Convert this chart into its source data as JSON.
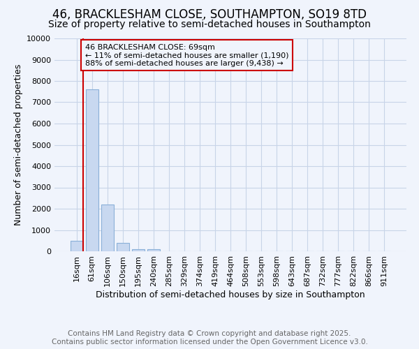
{
  "title": "46, BRACKLESHAM CLOSE, SOUTHAMPTON, SO19 8TD",
  "subtitle": "Size of property relative to semi-detached houses in Southampton",
  "xlabel": "Distribution of semi-detached houses by size in Southampton",
  "ylabel": "Number of semi-detached properties",
  "categories": [
    "16sqm",
    "61sqm",
    "106sqm",
    "150sqm",
    "195sqm",
    "240sqm",
    "285sqm",
    "329sqm",
    "374sqm",
    "419sqm",
    "464sqm",
    "508sqm",
    "553sqm",
    "598sqm",
    "643sqm",
    "687sqm",
    "732sqm",
    "777sqm",
    "822sqm",
    "866sqm",
    "911sqm"
  ],
  "values": [
    500,
    7600,
    2200,
    380,
    100,
    100,
    0,
    0,
    0,
    0,
    0,
    0,
    0,
    0,
    0,
    0,
    0,
    0,
    0,
    0,
    0
  ],
  "bar_color": "#c8d8f0",
  "bar_edge_color": "#8ab0d8",
  "grid_color": "#c8d4e8",
  "background_color": "#f0f4fc",
  "vline_color": "#cc0000",
  "property_label": "46 BRACKLESHAM CLOSE: 69sqm",
  "pct_smaller": "11% of semi-detached houses are smaller (1,190)",
  "pct_larger": "88% of semi-detached houses are larger (9,438)",
  "annotation_box_color": "#cc0000",
  "ylim": [
    0,
    10000
  ],
  "yticks": [
    0,
    1000,
    2000,
    3000,
    4000,
    5000,
    6000,
    7000,
    8000,
    9000,
    10000
  ],
  "footer_line1": "Contains HM Land Registry data © Crown copyright and database right 2025.",
  "footer_line2": "Contains public sector information licensed under the Open Government Licence v3.0.",
  "title_fontsize": 12,
  "subtitle_fontsize": 10,
  "footer_fontsize": 7.5,
  "axis_label_fontsize": 9,
  "tick_fontsize": 8,
  "annot_fontsize": 8
}
